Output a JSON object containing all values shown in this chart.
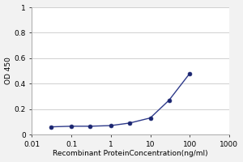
{
  "x": [
    0.03,
    0.1,
    0.3,
    1,
    3,
    10,
    30,
    100
  ],
  "y": [
    0.06,
    0.065,
    0.065,
    0.07,
    0.09,
    0.13,
    0.27,
    0.48
  ],
  "line_color": "#2e3a8a",
  "marker_color": "#1a2570",
  "marker_size": 3.5,
  "xlim": [
    0.01,
    1000
  ],
  "ylim": [
    0,
    1
  ],
  "yticks": [
    0,
    0.2,
    0.4,
    0.6,
    0.8,
    1.0
  ],
  "ytick_labels": [
    "0",
    "0.2",
    "0.4",
    "0.6",
    "0.8",
    "1"
  ],
  "xticks": [
    0.01,
    0.1,
    1,
    10,
    100,
    1000
  ],
  "xtick_labels": [
    "0.01",
    "0.1",
    "1",
    "10",
    "100",
    "1000"
  ],
  "xlabel": "Recombinant ProteinConcentration(ng/ml)",
  "ylabel": "OD 450",
  "background_color": "#f2f2f2",
  "plot_bg_color": "#ffffff",
  "grid_color": "#d0d0d0",
  "label_fontsize": 6.5,
  "tick_fontsize": 6.5
}
